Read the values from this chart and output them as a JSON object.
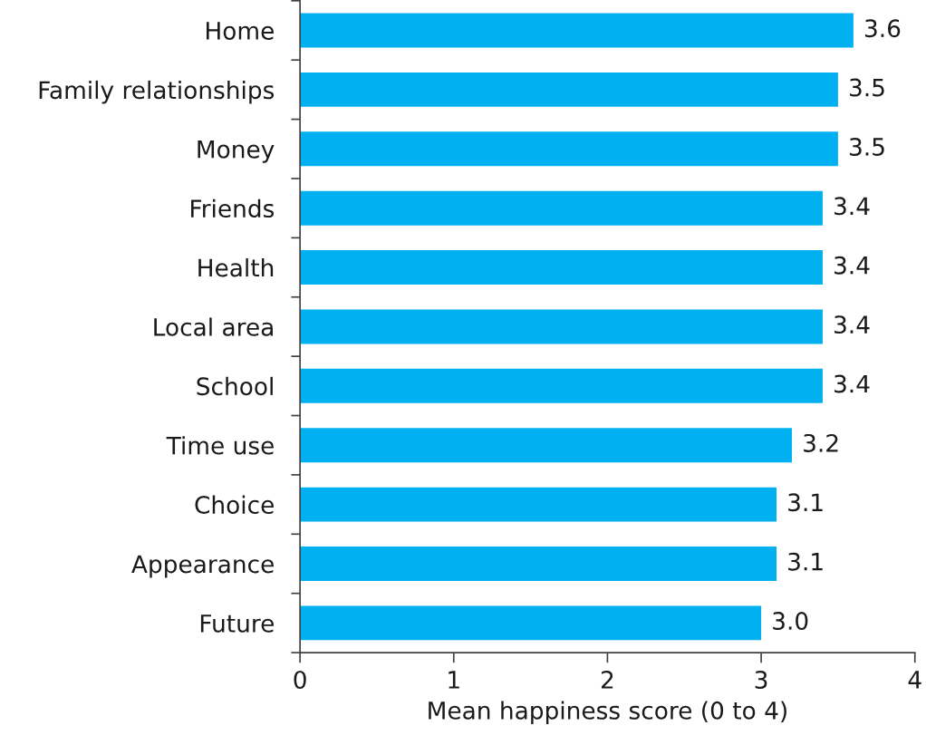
{
  "chart_data": {
    "type": "bar",
    "orientation": "horizontal",
    "categories": [
      "Home",
      "Family relationships",
      "Money",
      "Friends",
      "Health",
      "Local area",
      "School",
      "Time use",
      "Choice",
      "Appearance",
      "Future"
    ],
    "values": [
      3.6,
      3.5,
      3.5,
      3.4,
      3.4,
      3.4,
      3.4,
      3.2,
      3.1,
      3.1,
      3.0
    ],
    "value_labels": [
      "3.6",
      "3.5",
      "3.5",
      "3.4",
      "3.4",
      "3.4",
      "3.4",
      "3.2",
      "3.1",
      "3.1",
      "3.0"
    ],
    "color": "#00b0f0",
    "xlim": [
      0,
      4
    ],
    "xticks": [
      0,
      1,
      2,
      3,
      4
    ],
    "xlabel": "Mean happiness score (0 to 4)",
    "grid": false
  }
}
